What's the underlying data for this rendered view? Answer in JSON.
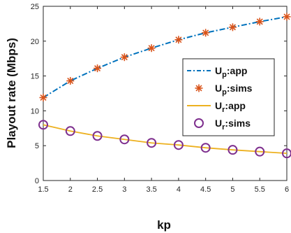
{
  "chart_data": {
    "type": "line",
    "xlabel": "kp",
    "ylabel": "Playout rate (Mbps)",
    "xlim": [
      1.5,
      6
    ],
    "ylim": [
      0,
      25
    ],
    "xticks": [
      "1.5",
      "2",
      "2.5",
      "3",
      "3.5",
      "4",
      "4.5",
      "5",
      "5.5",
      "6"
    ],
    "yticks": [
      "0",
      "5",
      "10",
      "15",
      "20",
      "25"
    ],
    "grid": false,
    "legend_position": "right",
    "x": [
      1.5,
      2,
      2.5,
      3,
      3.5,
      4,
      4.5,
      5,
      5.5,
      6
    ],
    "series": [
      {
        "name": "app",
        "name_prefix": "U",
        "name_sub": "p",
        "style": "dash-dot",
        "color": "#0072BD",
        "values": [
          11.9,
          14.3,
          16.1,
          17.7,
          19.0,
          20.2,
          21.2,
          22.0,
          22.8,
          23.5
        ]
      },
      {
        "name": "sims",
        "name_prefix": "U",
        "name_sub": "p",
        "style": "marker-star",
        "color": "#D95319",
        "values": [
          11.9,
          14.3,
          16.1,
          17.7,
          19.0,
          20.2,
          21.2,
          22.0,
          22.8,
          23.5
        ]
      },
      {
        "name": "app",
        "name_prefix": "U",
        "name_sub": "r",
        "style": "solid",
        "color": "#EDB120",
        "values": [
          8.0,
          7.1,
          6.4,
          5.9,
          5.4,
          5.1,
          4.7,
          4.4,
          4.15,
          3.9
        ]
      },
      {
        "name": "sims",
        "name_prefix": "U",
        "name_sub": "r",
        "style": "marker-circle",
        "color": "#7E2F8E",
        "values": [
          8.0,
          7.1,
          6.4,
          5.9,
          5.4,
          5.1,
          4.7,
          4.4,
          4.15,
          3.9
        ]
      }
    ]
  }
}
